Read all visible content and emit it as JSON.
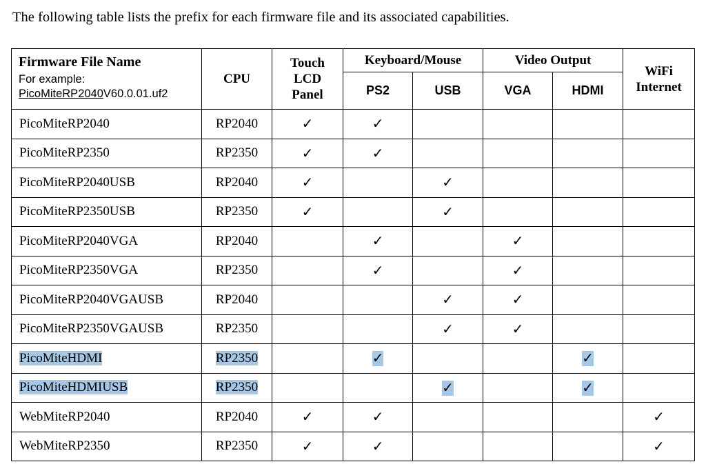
{
  "intro": "The following table lists the prefix for each firmware file and its associated capabilities.",
  "header": {
    "firmware_title": "Firmware File Name",
    "example_label": "For example:",
    "example_prefix": "PicoMiteRP2040",
    "example_suffix": "V60.0.01.uf2",
    "cpu": "CPU",
    "touch": [
      "Touch",
      "LCD",
      "Panel"
    ],
    "keyboard_mouse": "Keyboard/Mouse",
    "ps2": "PS2",
    "usb": "USB",
    "video_output": "Video Output",
    "vga": "VGA",
    "hdmi": "HDMI",
    "wifi": [
      "WiFi",
      "Internet"
    ]
  },
  "check_glyph": "✓",
  "highlight_color": "#a6c8e6",
  "rows": [
    {
      "name": "PicoMiteRP2040",
      "cpu": "RP2040",
      "caps": [
        1,
        1,
        0,
        0,
        0,
        0
      ],
      "highlighted": false
    },
    {
      "name": "PicoMiteRP2350",
      "cpu": "RP2350",
      "caps": [
        1,
        1,
        0,
        0,
        0,
        0
      ],
      "highlighted": false
    },
    {
      "name": "PicoMiteRP2040USB",
      "cpu": "RP2040",
      "caps": [
        1,
        0,
        1,
        0,
        0,
        0
      ],
      "highlighted": false
    },
    {
      "name": "PicoMiteRP2350USB",
      "cpu": "RP2350",
      "caps": [
        1,
        0,
        1,
        0,
        0,
        0
      ],
      "highlighted": false
    },
    {
      "name": "PicoMiteRP2040VGA",
      "cpu": "RP2040",
      "caps": [
        0,
        1,
        0,
        1,
        0,
        0
      ],
      "highlighted": false
    },
    {
      "name": "PicoMiteRP2350VGA",
      "cpu": "RP2350",
      "caps": [
        0,
        1,
        0,
        1,
        0,
        0
      ],
      "highlighted": false
    },
    {
      "name": "PicoMiteRP2040VGAUSB",
      "cpu": "RP2040",
      "caps": [
        0,
        0,
        1,
        1,
        0,
        0
      ],
      "highlighted": false
    },
    {
      "name": "PicoMiteRP2350VGAUSB",
      "cpu": "RP2350",
      "caps": [
        0,
        0,
        1,
        1,
        0,
        0
      ],
      "highlighted": false
    },
    {
      "name": "PicoMiteHDMI",
      "cpu": "RP2350",
      "caps": [
        0,
        1,
        0,
        0,
        1,
        0
      ],
      "highlighted": true
    },
    {
      "name": "PicoMiteHDMIUSB",
      "cpu": "RP2350",
      "caps": [
        0,
        0,
        1,
        0,
        1,
        0
      ],
      "highlighted": true
    },
    {
      "name": "WebMiteRP2040",
      "cpu": "RP2040",
      "caps": [
        1,
        1,
        0,
        0,
        0,
        1
      ],
      "highlighted": false
    },
    {
      "name": "WebMiteRP2350",
      "cpu": "RP2350",
      "caps": [
        1,
        1,
        0,
        0,
        0,
        1
      ],
      "highlighted": false
    }
  ]
}
